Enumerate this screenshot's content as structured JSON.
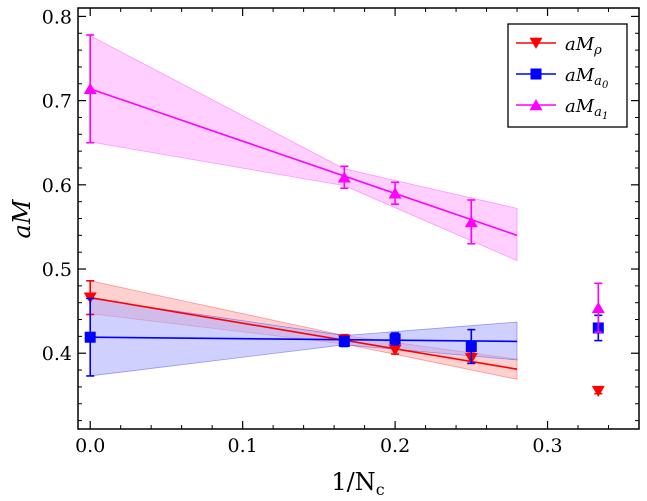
{
  "chart_data": {
    "type": "scatter",
    "title": "",
    "xlabel_main": "1/N",
    "xlabel_sub": "c",
    "ylabel": "aM",
    "xlim": [
      -0.008,
      0.36
    ],
    "ylim": [
      0.31,
      0.81
    ],
    "xticks": [
      0.0,
      0.1,
      0.2,
      0.3
    ],
    "xtick_labels": [
      "0.0",
      "0.1",
      "0.2",
      "0.3"
    ],
    "yticks": [
      0.4,
      0.5,
      0.6,
      0.7,
      0.8
    ],
    "ytick_labels": [
      "0.4",
      "0.5",
      "0.6",
      "0.7",
      "0.8"
    ],
    "grid": false,
    "legend_position": "top-right",
    "series": [
      {
        "name": "aM_rho",
        "legend_main": "aM",
        "legend_sub": "ρ",
        "color": "#ff0000",
        "band_color": "#ffaaaa",
        "marker": "triangle-down",
        "points": [
          {
            "x": 0.0,
            "y": 0.466,
            "err": 0.02
          },
          {
            "x": 0.1667,
            "y": 0.416,
            "err": 0.006
          },
          {
            "x": 0.2,
            "y": 0.404,
            "err": 0.005
          },
          {
            "x": 0.25,
            "y": 0.394,
            "err": 0.006
          },
          {
            "x": 0.3333,
            "y": 0.355,
            "err": 0.003
          }
        ],
        "fit": {
          "x_start": 0.0,
          "x_end": 0.28,
          "y_start": 0.466,
          "y_end": 0.381,
          "band_lower_start": 0.447,
          "band_upper_start": 0.486,
          "band_lower_mid": 0.411,
          "band_upper_mid": 0.421,
          "band_lower_end": 0.369,
          "band_upper_end": 0.393,
          "x_mid": 0.1667
        }
      },
      {
        "name": "aM_a0",
        "legend_main": "aM",
        "legend_sub": "a",
        "legend_subsub": "0",
        "color": "#0000ff",
        "band_color": "#aaaaff",
        "marker": "square",
        "points": [
          {
            "x": 0.0,
            "y": 0.419,
            "err": 0.046
          },
          {
            "x": 0.1667,
            "y": 0.414,
            "err": 0.006
          },
          {
            "x": 0.2,
            "y": 0.417,
            "err": 0.007
          },
          {
            "x": 0.25,
            "y": 0.408,
            "err": 0.02
          },
          {
            "x": 0.3333,
            "y": 0.43,
            "err": 0.015
          }
        ],
        "fit": {
          "x_start": 0.0,
          "x_end": 0.28,
          "y_start": 0.419,
          "y_end": 0.414,
          "band_lower_start": 0.373,
          "band_upper_start": 0.465,
          "band_lower_mid": 0.41,
          "band_upper_mid": 0.421,
          "band_lower_end": 0.392,
          "band_upper_end": 0.437,
          "x_mid": 0.1667
        }
      },
      {
        "name": "aM_a1",
        "legend_main": "aM",
        "legend_sub": "a",
        "legend_subsub": "1",
        "color": "#ff00ff",
        "band_color": "#ffaaff",
        "marker": "triangle-up",
        "points": [
          {
            "x": 0.0,
            "y": 0.714,
            "err": 0.064
          },
          {
            "x": 0.1667,
            "y": 0.609,
            "err": 0.013
          },
          {
            "x": 0.2,
            "y": 0.59,
            "err": 0.013
          },
          {
            "x": 0.25,
            "y": 0.556,
            "err": 0.026
          },
          {
            "x": 0.3333,
            "y": 0.454,
            "err": 0.029
          }
        ],
        "fit": {
          "x_start": 0.0,
          "x_end": 0.28,
          "y_start": 0.714,
          "y_end": 0.54,
          "band_lower_start": 0.651,
          "band_upper_start": 0.777,
          "band_lower_mid": 0.599,
          "band_upper_mid": 0.619,
          "band_lower_end": 0.51,
          "band_upper_end": 0.572,
          "x_mid": 0.1667
        }
      }
    ]
  }
}
